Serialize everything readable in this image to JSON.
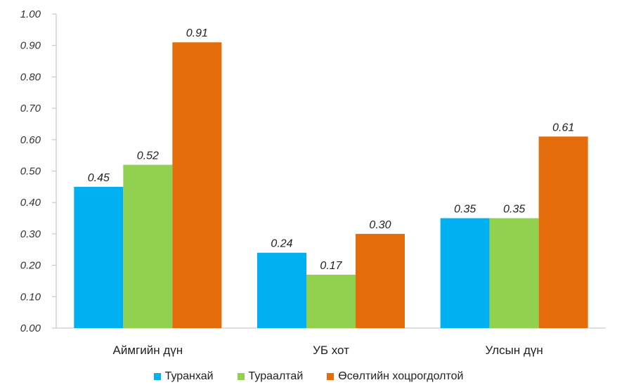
{
  "chart_data": {
    "type": "bar",
    "title": "",
    "xlabel": "",
    "ylabel": "",
    "ylim": [
      0,
      1.0
    ],
    "yticks": [
      "0.00",
      "0.10",
      "0.20",
      "0.30",
      "0.40",
      "0.50",
      "0.60",
      "0.70",
      "0.80",
      "0.90",
      "1.00"
    ],
    "categories": [
      "Аймгийн дүн",
      "УБ хот",
      "Улсын дүн"
    ],
    "series": [
      {
        "name": "Туранхай",
        "color": "#00b0f0",
        "values": [
          0.45,
          0.24,
          0.35
        ],
        "labels": [
          "0.45",
          "0.24",
          "0.35"
        ]
      },
      {
        "name": "Тураалтай",
        "color": "#92d050",
        "values": [
          0.52,
          0.17,
          0.35
        ],
        "labels": [
          "0.52",
          "0.17",
          "0.35"
        ]
      },
      {
        "name": "Өсөлтийн хоцрогдолтой",
        "color": "#e46c0a",
        "values": [
          0.91,
          0.3,
          0.61
        ],
        "labels": [
          "0.91",
          "0.30",
          "0.61"
        ]
      }
    ],
    "grid": false,
    "legend": "bottom"
  }
}
